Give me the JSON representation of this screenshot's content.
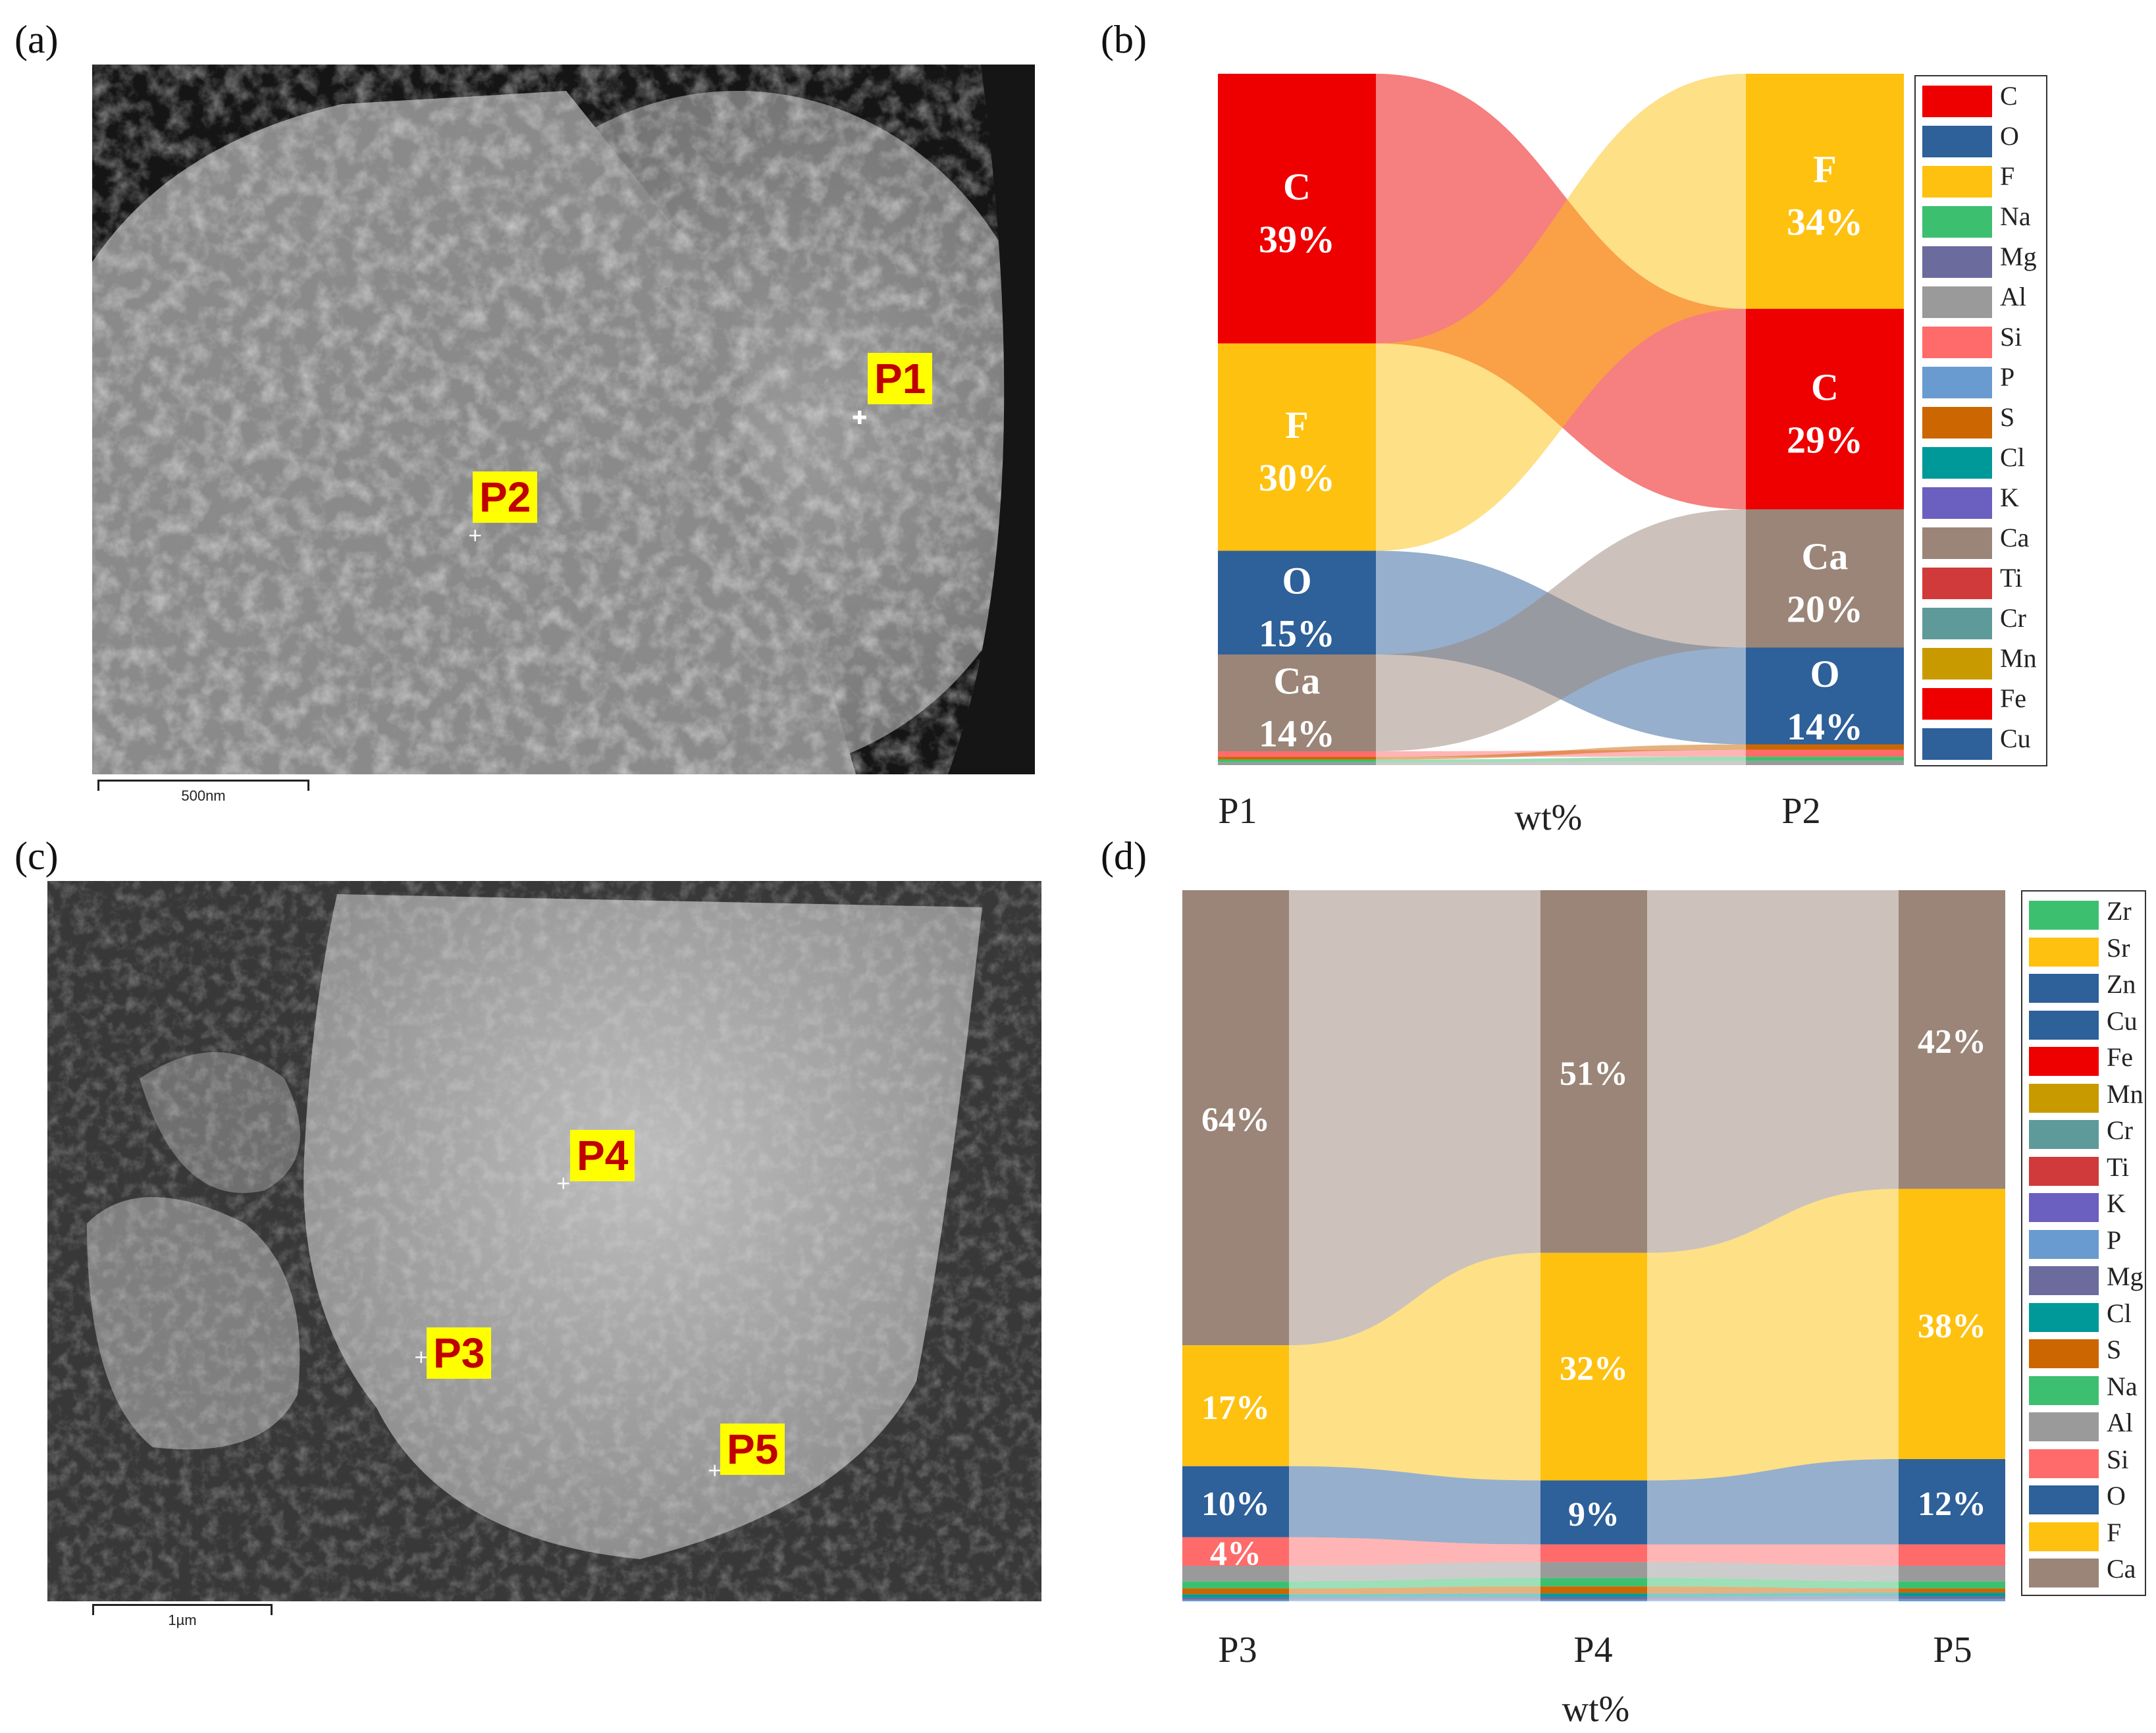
{
  "panels": {
    "a": {
      "label": "(a)",
      "scalebar": "500nm",
      "points": [
        "P1",
        "P2"
      ]
    },
    "b": {
      "label": "(b)"
    },
    "c": {
      "label": "(c)",
      "scalebar": "1µm",
      "points": [
        "P3",
        "P4",
        "P5"
      ]
    },
    "d": {
      "label": "(d)"
    }
  },
  "colors": {
    "C": "#ee0000",
    "O": "#2e6099",
    "F": "#fec10f",
    "Na": "#3cc070",
    "Mg": "#6b6b9e",
    "Al": "#9a9a9a",
    "Si": "#ff6b6b",
    "P": "#6a9bd0",
    "S": "#cc6600",
    "Cl": "#009999",
    "K": "#6b5fbf",
    "Ca": "#9a8578",
    "Ti": "#d03a3a",
    "Cr": "#5f9a9a",
    "Mn": "#c99a00",
    "Fe": "#ee0000",
    "Cu": "#2e6099",
    "Zr": "#3cc070",
    "Sr": "#fec10f",
    "Zn": "#2e6099"
  },
  "chart_data": [
    {
      "type": "sankey",
      "panel": "b",
      "columns": [
        "P1",
        "P2"
      ],
      "xlabel": "wt%",
      "legend": [
        "C",
        "O",
        "F",
        "Na",
        "Mg",
        "Al",
        "Si",
        "P",
        "S",
        "Cl",
        "K",
        "Ca",
        "Ti",
        "Cr",
        "Mn",
        "Fe",
        "Cu"
      ],
      "legend_position": "right",
      "P1": [
        {
          "el": "C",
          "value": 39,
          "label": "39%"
        },
        {
          "el": "F",
          "value": 30,
          "label": "30%"
        },
        {
          "el": "O",
          "value": 15,
          "label": "15%"
        },
        {
          "el": "Ca",
          "value": 14,
          "label": "14%"
        },
        {
          "el": "Si",
          "value": 0.8
        },
        {
          "el": "S",
          "value": 0.4
        },
        {
          "el": "Na",
          "value": 0.4
        },
        {
          "el": "Al",
          "value": 0.4
        }
      ],
      "P2": [
        {
          "el": "F",
          "value": 34,
          "label": "34%"
        },
        {
          "el": "C",
          "value": 29,
          "label": "29%"
        },
        {
          "el": "Ca",
          "value": 20,
          "label": "20%"
        },
        {
          "el": "O",
          "value": 14,
          "label": "14%"
        },
        {
          "el": "S",
          "value": 0.8
        },
        {
          "el": "Si",
          "value": 1.0
        },
        {
          "el": "Na",
          "value": 0.6
        },
        {
          "el": "Al",
          "value": 0.6
        }
      ]
    },
    {
      "type": "sankey",
      "panel": "d",
      "columns": [
        "P3",
        "P4",
        "P5"
      ],
      "xlabel": "wt%",
      "legend": [
        "Zr",
        "Sr",
        "Zn",
        "Cu",
        "Fe",
        "Mn",
        "Cr",
        "Ti",
        "K",
        "P",
        "Mg",
        "Cl",
        "S",
        "Na",
        "Al",
        "Si",
        "O",
        "F",
        "Ca"
      ],
      "legend_position": "right",
      "order": [
        "Ca",
        "F",
        "O",
        "Si",
        "Al",
        "Na",
        "S",
        "Cl",
        "Mg",
        "P"
      ],
      "P3": {
        "Ca": {
          "value": 64,
          "label": "64%"
        },
        "F": {
          "value": 17,
          "label": "17%"
        },
        "O": {
          "value": 10,
          "label": "10%"
        },
        "Si": {
          "value": 4,
          "label": "4%"
        },
        "Al": {
          "value": 2.2
        },
        "Na": {
          "value": 1.0
        },
        "S": {
          "value": 0.8
        },
        "Cl": {
          "value": 0.5
        },
        "Mg": {
          "value": 0.3
        },
        "P": {
          "value": 0.2
        }
      },
      "P4": {
        "Ca": {
          "value": 51,
          "label": "51%"
        },
        "F": {
          "value": 32,
          "label": "32%"
        },
        "O": {
          "value": 9,
          "label": "9%"
        },
        "Si": {
          "value": 2.5
        },
        "Al": {
          "value": 2.2
        },
        "Na": {
          "value": 1.2
        },
        "S": {
          "value": 1.0
        },
        "Cl": {
          "value": 0.5
        },
        "Mg": {
          "value": 0.4
        },
        "P": {
          "value": 0.2
        }
      },
      "P5": {
        "Ca": {
          "value": 42,
          "label": "42%"
        },
        "F": {
          "value": 38,
          "label": "38%"
        },
        "O": {
          "value": 12,
          "label": "12%"
        },
        "Si": {
          "value": 3.0
        },
        "Al": {
          "value": 2.2
        },
        "Na": {
          "value": 1.0
        },
        "S": {
          "value": 0.6
        },
        "Cl": {
          "value": 0.5
        },
        "Mg": {
          "value": 0.4
        },
        "P": {
          "value": 0.3
        }
      }
    }
  ]
}
